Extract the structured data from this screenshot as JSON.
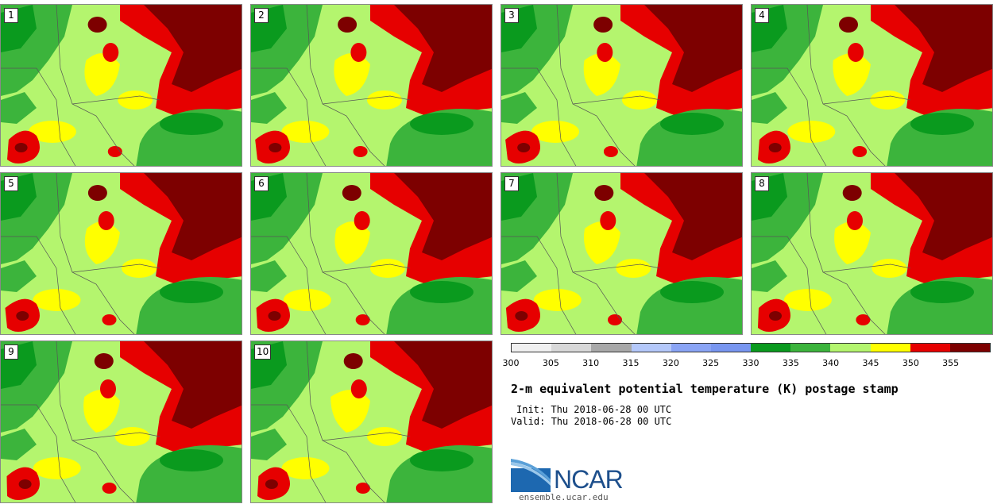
{
  "panels": [
    {
      "label": "1"
    },
    {
      "label": "2"
    },
    {
      "label": "3"
    },
    {
      "label": "4"
    },
    {
      "label": "5"
    },
    {
      "label": "6"
    },
    {
      "label": "7"
    },
    {
      "label": "8"
    },
    {
      "label": "9"
    },
    {
      "label": "10"
    }
  ],
  "colorbar": {
    "colors": [
      "#f0f0f0",
      "#d8d8d8",
      "#a8a8a8",
      "#b4c8fa",
      "#8aa4f5",
      "#7896f0",
      "#0a9a1e",
      "#3cb43c",
      "#b4f56e",
      "#ffff00",
      "#e60000",
      "#7d0000"
    ],
    "ticks": [
      "300",
      "305",
      "310",
      "315",
      "320",
      "325",
      "330",
      "335",
      "340",
      "345",
      "350",
      "355"
    ]
  },
  "title": "2-m equivalent potential temperature (K) postage stamp",
  "init_text": "Init: Thu 2018-06-28 00 UTC",
  "valid_text": "Valid: Thu 2018-06-28 00 UTC",
  "logo_text": "NCAR",
  "website": "ensemble.ucar.edu"
}
